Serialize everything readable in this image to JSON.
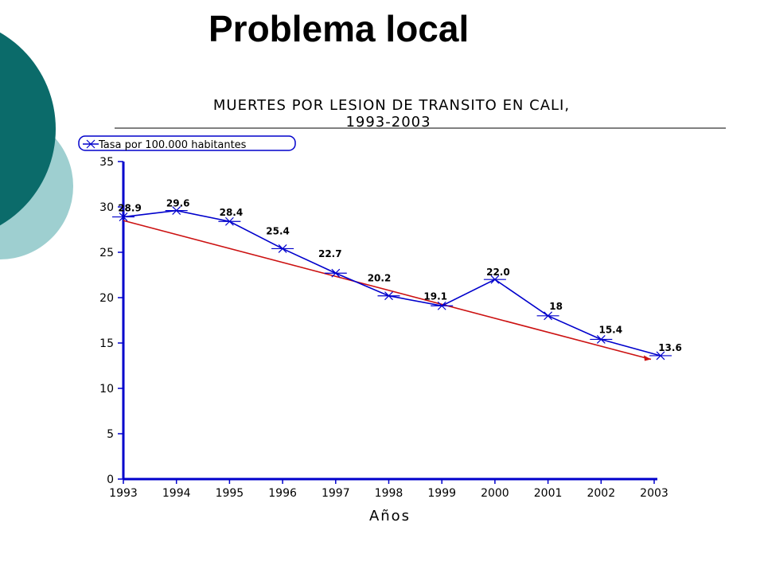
{
  "slide": {
    "title": "Problema local"
  },
  "colors": {
    "decor_dark": "#0b6b6a",
    "decor_light": "#9ecfd0",
    "series_line": "#0000cc",
    "trend_line": "#cc1111",
    "axis": "#0000cc"
  },
  "chart_data": {
    "type": "line",
    "title_line1": "MUERTES POR LESION DE TRANSITO EN CALI,",
    "title_line2": "1993-2003",
    "xlabel": "Años",
    "ylabel": "",
    "categories": [
      "1993",
      "1994",
      "1995",
      "1996",
      "1997",
      "1998",
      "1999",
      "2000",
      "2001",
      "2002",
      "2003"
    ],
    "series": [
      {
        "name": "Tasa por 100.000 habitantes",
        "values": [
          28.9,
          29.6,
          28.4,
          25.4,
          22.7,
          20.2,
          19.1,
          22.0,
          18,
          15.4,
          13.6
        ],
        "labels": [
          "28.9",
          "29.6",
          "28.4",
          "25.4",
          "22.7",
          "20.2",
          "19.1",
          "22.0",
          "18",
          "15.4",
          "13.6"
        ]
      }
    ],
    "trendline": {
      "start": 28.5,
      "end": 13.2
    },
    "ylim": [
      0,
      35
    ],
    "yticks": [
      "0",
      "5",
      "10",
      "15",
      "20",
      "25",
      "30",
      "35"
    ],
    "grid": false,
    "legend_position": "top-left"
  }
}
